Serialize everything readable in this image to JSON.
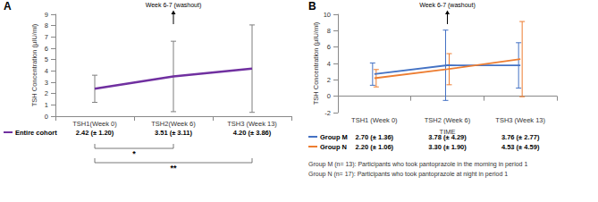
{
  "chart_data": [
    {
      "type": "line",
      "title": "A",
      "categories": [
        "TSH1(Week 0)",
        "TSH2(Week 6)",
        "TSH3 (Week 13)"
      ],
      "y_label": "TSH Concentration (µIU/ml)",
      "series": [
        {
          "name": "Entire cohort",
          "color": "#7030a0",
          "values": [
            2.42,
            3.51,
            4.2
          ],
          "errors": [
            1.2,
            3.11,
            3.86
          ],
          "value_labels": [
            "2.42 (± 1.20)",
            "3.51 (± 3.11)",
            "4.20 (± 3.86)"
          ]
        }
      ],
      "ylim": [
        0,
        9
      ],
      "yticks": [
        0,
        1,
        2,
        3,
        4,
        5,
        6,
        7,
        8,
        9
      ],
      "grid": false,
      "annotations": [
        {
          "text": "Week 6-7 (washout)",
          "x": "TSH2(Week 6)"
        }
      ],
      "significance": [
        {
          "from": "TSH1(Week 0)",
          "to": "TSH2(Week 6)",
          "label": "*"
        },
        {
          "from": "TSH1(Week 0)",
          "to": "TSH3 (Week 13)",
          "label": "**"
        }
      ]
    },
    {
      "type": "line",
      "title": "B",
      "categories": [
        "TSH1 (Week 0)",
        "TSH2 (Week 6)",
        "TSH3 (Week 13)"
      ],
      "x_label": "TIME",
      "y_label": "TSH Concentration (µIU/ml)",
      "series": [
        {
          "name": "Group M",
          "color": "#4472c4",
          "values": [
            2.7,
            3.78,
            3.76
          ],
          "errors": [
            1.36,
            4.29,
            2.77
          ],
          "value_labels": [
            "2.70 (± 1.36)",
            "3.78 (± 4.29)",
            "3.76 (± 2.77)"
          ]
        },
        {
          "name": "Group N",
          "color": "#ed7d31",
          "values": [
            2.2,
            3.3,
            4.53
          ],
          "errors": [
            1.06,
            1.9,
            4.59
          ],
          "value_labels": [
            "2.20 (± 1.06)",
            "3.30 (± 1.90)",
            "4.53 (± 4.59)"
          ]
        }
      ],
      "ylim": [
        -2,
        10
      ],
      "yticks": [
        -2,
        0,
        2,
        4,
        6,
        8,
        10
      ],
      "grid": false,
      "annotations": [
        {
          "text": "Week 6-7 (washout)",
          "x": "TSH2 (Week 6)"
        }
      ],
      "notes": [
        "Group M (n= 13): Participants who took pantoprazole in the morning in period 1",
        "Group N (n= 17): Participants who took pantoprazole at night in period 1"
      ]
    }
  ]
}
